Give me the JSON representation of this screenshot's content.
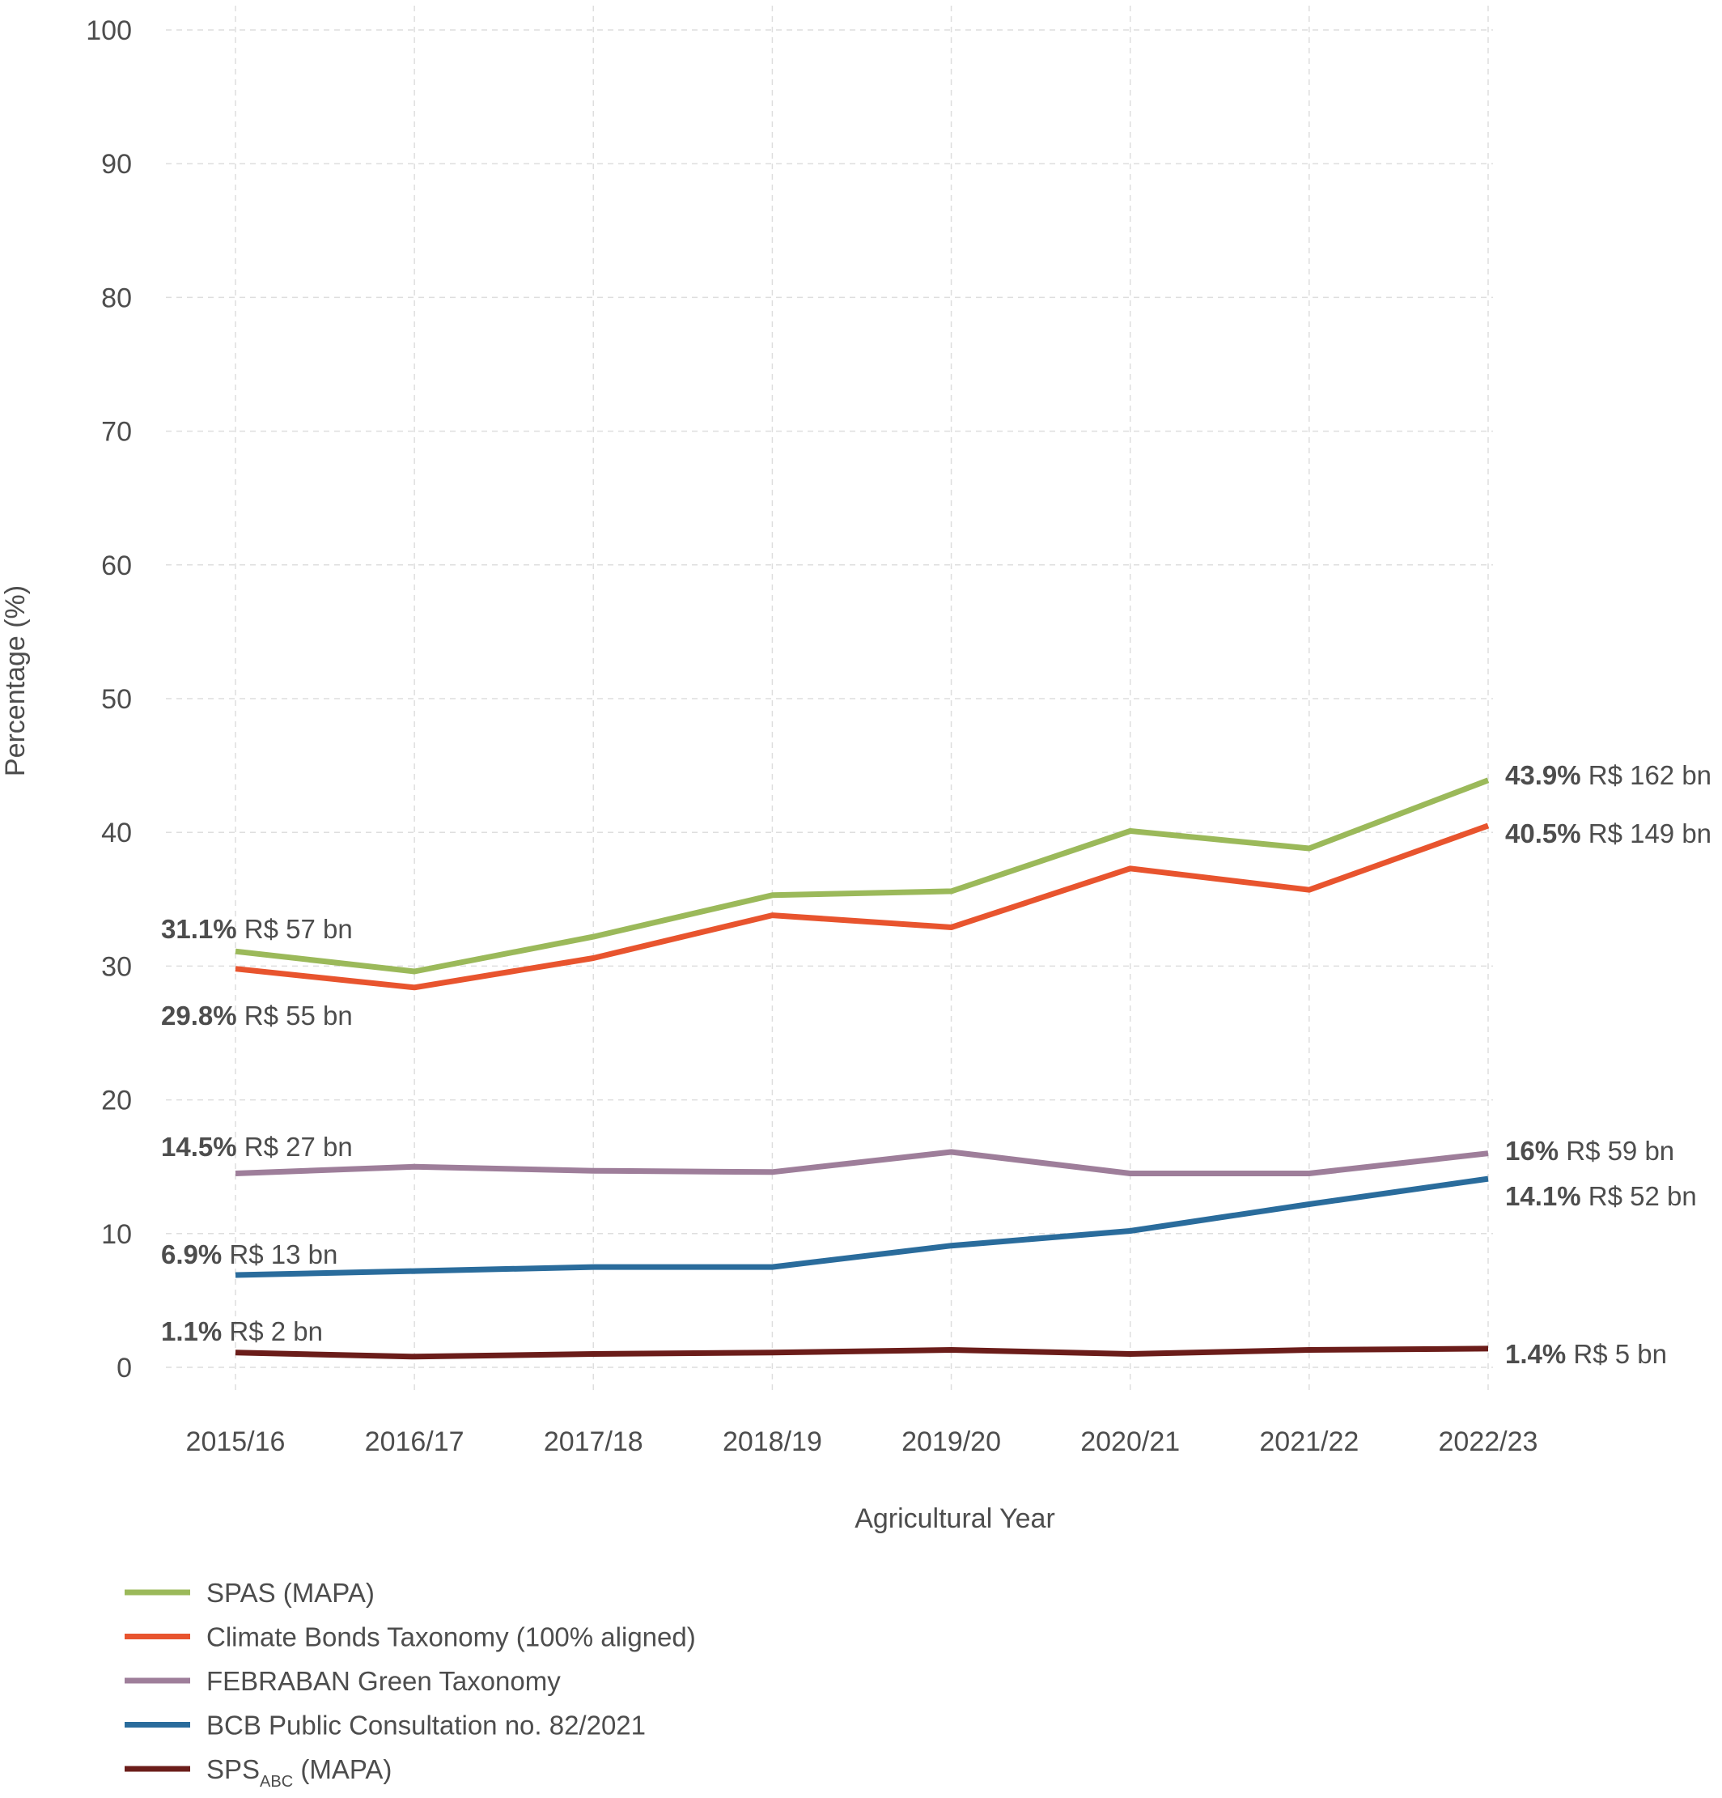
{
  "chart_data": {
    "type": "line",
    "title": "",
    "xlabel": "Agricultural Year",
    "ylabel": "Percentage (%)",
    "ylim": [
      0,
      100
    ],
    "yticks": [
      0,
      10,
      20,
      30,
      40,
      50,
      60,
      70,
      80,
      90,
      100
    ],
    "grid": true,
    "legend_position": "bottom-left",
    "categories": [
      "2015/16",
      "2016/17",
      "2017/18",
      "2018/19",
      "2019/20",
      "2020/21",
      "2021/22",
      "2022/23"
    ],
    "series": [
      {
        "name": "SPAS (MAPA)",
        "color": "#9bb95a",
        "values": [
          31.1,
          29.6,
          32.2,
          35.3,
          35.6,
          40.1,
          38.8,
          43.9
        ],
        "start_label": {
          "pct": "31.1%",
          "amount": "R$ 57 bn"
        },
        "end_label": {
          "pct": "43.9%",
          "amount": "R$ 162 bn"
        }
      },
      {
        "name": "Climate Bonds Taxonomy (100% aligned)",
        "color": "#e8542e",
        "values": [
          29.8,
          28.4,
          30.6,
          33.8,
          32.9,
          37.3,
          35.7,
          40.5
        ],
        "start_label": {
          "pct": "29.8%",
          "amount": "R$ 55 bn"
        },
        "end_label": {
          "pct": "40.5%",
          "amount": "R$ 149 bn"
        }
      },
      {
        "name": "FEBRABAN Green Taxonomy",
        "color": "#9e7e9a",
        "values": [
          14.5,
          15.0,
          14.7,
          14.6,
          16.1,
          14.5,
          14.5,
          16.0
        ],
        "start_label": {
          "pct": "14.5%",
          "amount": "R$ 27 bn"
        },
        "end_label": {
          "pct": "16%",
          "amount": "R$ 59 bn"
        }
      },
      {
        "name": "BCB Public Consultation no. 82/2021",
        "color": "#2a6c9c",
        "values": [
          6.9,
          7.2,
          7.5,
          7.5,
          9.1,
          10.2,
          12.2,
          14.1
        ],
        "start_label": {
          "pct": "6.9%",
          "amount": "R$ 13 bn"
        },
        "end_label": {
          "pct": "14.1%",
          "amount": "R$ 52 bn"
        }
      },
      {
        "name": "SPS",
        "name_subscript": "ABC",
        "name_suffix": " (MAPA)",
        "color": "#6b1d1a",
        "values": [
          1.1,
          0.8,
          1.0,
          1.1,
          1.3,
          1.0,
          1.3,
          1.4
        ],
        "start_label": {
          "pct": "1.1%",
          "amount": "R$ 2 bn"
        },
        "end_label": {
          "pct": "1.4%",
          "amount": "R$ 5 bn"
        }
      }
    ]
  }
}
